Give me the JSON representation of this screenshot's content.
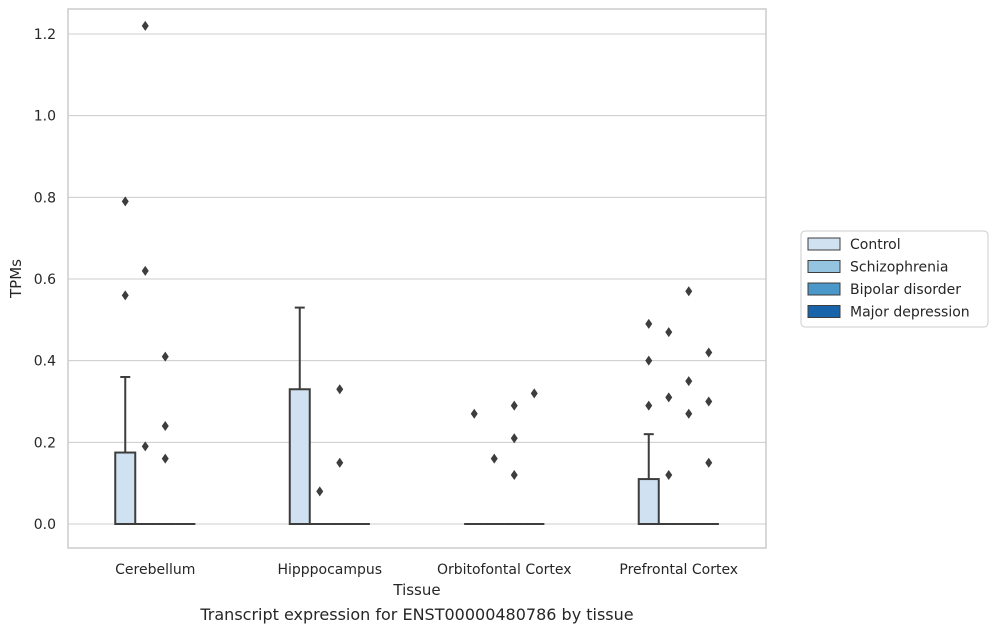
{
  "caption": "Transcript expression for ENST00000480786 by tissue",
  "chart_data": {
    "type": "box",
    "xlabel": "Tissue",
    "ylabel": "TPMs",
    "categories": [
      "Cerebellum",
      "Hipppocampus",
      "Orbitofontal Cortex",
      "Prefrontal Cortex"
    ],
    "ylim": [
      -0.06,
      1.28
    ],
    "yticks": [
      "0.0",
      "0.2",
      "0.4",
      "0.6",
      "0.8",
      "1.0",
      "1.2"
    ],
    "grid": "horizontal",
    "legend_position": "right",
    "series": [
      {
        "name": "Control",
        "color": "#d0e1f2"
      },
      {
        "name": "Schizophrenia",
        "color": "#94c4df"
      },
      {
        "name": "Bipolar disorder",
        "color": "#4a98c9"
      },
      {
        "name": "Major depression",
        "color": "#1764ab"
      }
    ],
    "boxes": [
      {
        "category": "Cerebellum",
        "series": "Control",
        "whisker_low": 0,
        "q1": 0,
        "median": 0,
        "q3": 0.175,
        "whisker_high": 0.36,
        "outliers": [
          0.56,
          0.79
        ]
      },
      {
        "category": "Cerebellum",
        "series": "Schizophrenia",
        "whisker_low": 0,
        "q1": 0,
        "median": 0,
        "q3": 0,
        "whisker_high": 0,
        "outliers": [
          0.19,
          0.62,
          1.22
        ]
      },
      {
        "category": "Cerebellum",
        "series": "Bipolar disorder",
        "whisker_low": 0,
        "q1": 0,
        "median": 0,
        "q3": 0,
        "whisker_high": 0,
        "outliers": [
          0.16,
          0.24,
          0.41
        ]
      },
      {
        "category": "Cerebellum",
        "series": "Major depression",
        "whisker_low": 0,
        "q1": 0,
        "median": 0,
        "q3": 0,
        "whisker_high": 0,
        "outliers": []
      },
      {
        "category": "Hipppocampus",
        "series": "Control",
        "whisker_low": 0,
        "q1": 0,
        "median": 0,
        "q3": 0.33,
        "whisker_high": 0.53,
        "outliers": []
      },
      {
        "category": "Hipppocampus",
        "series": "Schizophrenia",
        "whisker_low": 0,
        "q1": 0,
        "median": 0,
        "q3": 0,
        "whisker_high": 0,
        "outliers": [
          0.08
        ]
      },
      {
        "category": "Hipppocampus",
        "series": "Bipolar disorder",
        "whisker_low": 0,
        "q1": 0,
        "median": 0,
        "q3": 0,
        "whisker_high": 0,
        "outliers": [
          0.15,
          0.33
        ]
      },
      {
        "category": "Hipppocampus",
        "series": "Major depression",
        "whisker_low": 0,
        "q1": 0,
        "median": 0,
        "q3": 0,
        "whisker_high": 0,
        "outliers": []
      },
      {
        "category": "Orbitofontal Cortex",
        "series": "Control",
        "whisker_low": 0,
        "q1": 0,
        "median": 0,
        "q3": 0,
        "whisker_high": 0,
        "outliers": [
          0.27
        ]
      },
      {
        "category": "Orbitofontal Cortex",
        "series": "Schizophrenia",
        "whisker_low": 0,
        "q1": 0,
        "median": 0,
        "q3": 0,
        "whisker_high": 0,
        "outliers": [
          0.16
        ]
      },
      {
        "category": "Orbitofontal Cortex",
        "series": "Bipolar disorder",
        "whisker_low": 0,
        "q1": 0,
        "median": 0,
        "q3": 0,
        "whisker_high": 0,
        "outliers": [
          0.12,
          0.21,
          0.29
        ]
      },
      {
        "category": "Orbitofontal Cortex",
        "series": "Major depression",
        "whisker_low": 0,
        "q1": 0,
        "median": 0,
        "q3": 0,
        "whisker_high": 0,
        "outliers": [
          0.32
        ]
      },
      {
        "category": "Prefrontal Cortex",
        "series": "Control",
        "whisker_low": 0,
        "q1": 0,
        "median": 0,
        "q3": 0.11,
        "whisker_high": 0.22,
        "outliers": [
          0.29,
          0.4,
          0.49
        ]
      },
      {
        "category": "Prefrontal Cortex",
        "series": "Schizophrenia",
        "whisker_low": 0,
        "q1": 0,
        "median": 0,
        "q3": 0,
        "whisker_high": 0,
        "outliers": [
          0.12,
          0.31,
          0.47
        ]
      },
      {
        "category": "Prefrontal Cortex",
        "series": "Bipolar disorder",
        "whisker_low": 0,
        "q1": 0,
        "median": 0,
        "q3": 0,
        "whisker_high": 0,
        "outliers": [
          0.27,
          0.35,
          0.57
        ]
      },
      {
        "category": "Prefrontal Cortex",
        "series": "Major depression",
        "whisker_low": 0,
        "q1": 0,
        "median": 0,
        "q3": 0,
        "whisker_high": 0,
        "outliers": [
          0.15,
          0.3,
          0.42
        ]
      }
    ]
  }
}
